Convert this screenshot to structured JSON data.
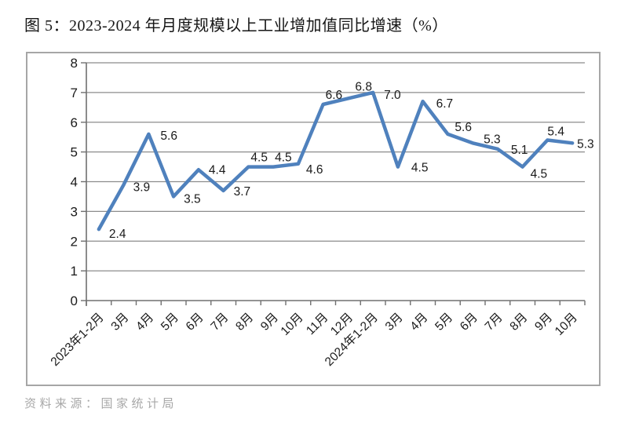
{
  "title": "图 5：2023-2024 年月度规模以上工业增加值同比增速（%）",
  "source": "资料来源：国家统计局",
  "chart_data": {
    "type": "line",
    "title": "2023-2024 年月度规模以上工业增加值同比增速（%）",
    "categories": [
      "2023年1-2月",
      "3月",
      "4月",
      "5月",
      "6月",
      "7月",
      "8月",
      "9月",
      "10月",
      "11月",
      "12月",
      "2024年1-2月",
      "3月",
      "4月",
      "5月",
      "6月",
      "7月",
      "8月",
      "9月",
      "10月"
    ],
    "values": [
      2.4,
      3.9,
      5.6,
      3.5,
      4.4,
      3.7,
      4.5,
      4.5,
      4.6,
      6.6,
      6.8,
      7.0,
      4.5,
      6.7,
      5.6,
      5.3,
      5.1,
      4.5,
      5.4,
      5.3
    ],
    "data_labels": [
      "2.4",
      "3.9",
      "5.6",
      "3.5",
      "4.4",
      "3.7",
      "4.5",
      "4.5",
      "4.6",
      "6.6",
      "6.8",
      "7.0",
      "4.5",
      "6.7",
      "5.6",
      "5.3",
      "5.1",
      "4.5",
      "5.4",
      "5.3"
    ],
    "ylabel": "",
    "xlabel": "",
    "ylim": [
      0,
      8
    ],
    "ytick_step": 1,
    "ytick_labels": [
      "0",
      "1",
      "2",
      "3",
      "4",
      "5",
      "6",
      "7",
      "8"
    ],
    "grid": true,
    "legend_position": "none",
    "colors": {
      "line": "#4F81BD",
      "gridline": "#8c8c8c",
      "axis": "#707070",
      "tick_label": "#1a1a1a",
      "data_label": "#1a1a1a",
      "chart_border": "#a6a6a6",
      "title_text": "#161616",
      "source_text": "#a8a8a8"
    }
  }
}
